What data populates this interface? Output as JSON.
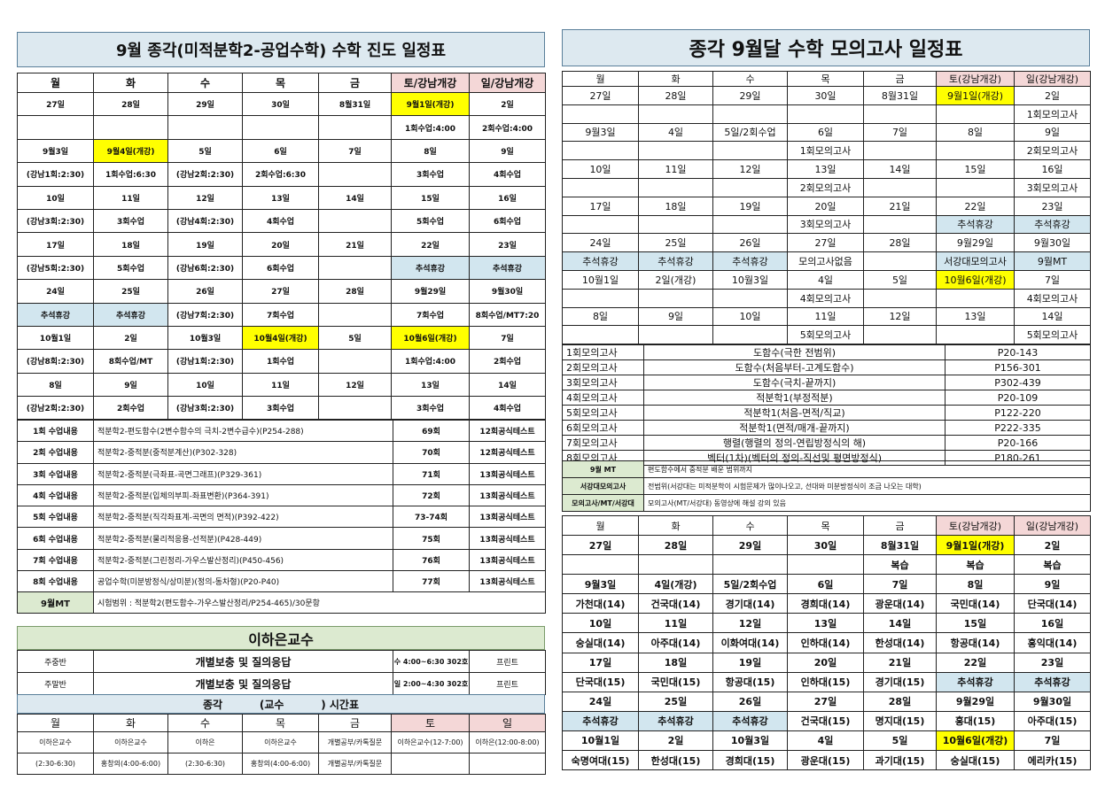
{
  "left": {
    "title": "9월 종각(미적분학2-공업수학) 수학 진도 일정표",
    "headers": [
      "월",
      "화",
      "수",
      "목",
      "금",
      "토/강남개강",
      "일/강남개강"
    ],
    "rows": [
      [
        "27일",
        "28일",
        "29일",
        "30일",
        "8월31일",
        "9월1일(개강)",
        "2일"
      ],
      [
        "",
        "",
        "",
        "",
        "",
        "1회수업:4:00",
        "2회수업:4:00"
      ],
      [
        "9월3일",
        "9월4일(개강)",
        "5일",
        "6일",
        "7일",
        "8일",
        "9일"
      ],
      [
        "(강남1회:2:30)",
        "1회수업:6:30",
        "(강남2회:2:30)",
        "2회수업:6:30",
        "",
        "3회수업",
        "4회수업"
      ],
      [
        "10일",
        "11일",
        "12일",
        "13일",
        "14일",
        "15일",
        "16일"
      ],
      [
        "(강남3회:2:30)",
        "3회수업",
        "(강남4회:2:30)",
        "4회수업",
        "",
        "5회수업",
        "6회수업"
      ],
      [
        "17일",
        "18일",
        "19일",
        "20일",
        "21일",
        "22일",
        "23일"
      ],
      [
        "(강남5회:2:30)",
        "5회수업",
        "(강남6회:2:30)",
        "6회수업",
        "",
        "추석휴강",
        "추석휴강"
      ],
      [
        "24일",
        "25일",
        "26일",
        "27일",
        "28일",
        "9월29일",
        "9월30일"
      ],
      [
        "추석휴강",
        "추석휴강",
        "(강남7회:2:30)",
        "7회수업",
        "",
        "7회수업",
        "8회수업/MT7:20"
      ],
      [
        "10월1일",
        "2일",
        "10월3일",
        "10월4일(개강)",
        "5일",
        "10월6일(개강)",
        "7일"
      ],
      [
        "(강남8회:2:30)",
        "8회수업/MT",
        "(강남1회:2:30)",
        "1회수업",
        "",
        "1회수업:4:00",
        "2회수업"
      ],
      [
        "8일",
        "9일",
        "10일",
        "11일",
        "12일",
        "13일",
        "14일"
      ],
      [
        "(강남2회:2:30)",
        "2회수업",
        "(강남3회:2:30)",
        "3회수업",
        "",
        "3회수업",
        "4회수업"
      ]
    ],
    "contents": [
      [
        "1회 수업내용",
        "적분학2-편도함수(2변수함수의 극치-2변수급수)(P254-288)",
        "69회",
        "12회공식테스트"
      ],
      [
        "2회 수업내용",
        "적분학2-중적분(중적분계산)(P302-328)",
        "70회",
        "12회공식테스트"
      ],
      [
        "3회 수업내용",
        "적분학2-중적분(극좌표-곡면그래프)(P329-361)",
        "71회",
        "13회공식테스트"
      ],
      [
        "4회 수업내용",
        "적분학2-중적분(입체의부피-좌표변환)(P364-391)",
        "72회",
        "13회공식테스트"
      ],
      [
        "5회 수업내용",
        "적분학2-중적분(직각좌표계-곡면의 면적)(P392-422)",
        "73-74회",
        "13회공식테스트"
      ],
      [
        "6회 수업내용",
        "적분학2-중적분(물리적응용-선적분)(P428-449)",
        "75회",
        "13회공식테스트"
      ],
      [
        "7회 수업내용",
        "적분학2-중적분(그린정리-가우스발산정리)(P450-456)",
        "76회",
        "13회공식테스트"
      ],
      [
        "8회 수업내용",
        "공업수학(미분방정식/상미분)(정의-동차형)(P20-P40)",
        "77회",
        "13회공식테스트"
      ]
    ],
    "mt": {
      "label": "9월MT",
      "text": "시험범위 : 적분학2(편도함수-가우스발산정리/P254-465)/30문항"
    },
    "prof": {
      "title": "이하은교수",
      "rows": [
        [
          "주중반",
          "개별보충 및 질의응답",
          "수 4:00~6:30 302호",
          "프린트"
        ],
        [
          "주말반",
          "개별보충 및 질의응답",
          "일 2:00~4:30 302호",
          "프린트"
        ]
      ],
      "timetable_title": "종각          (교수          ) 시간표",
      "days": [
        "월",
        "화",
        "수",
        "목",
        "금",
        "토",
        "일"
      ],
      "tt_rows": [
        [
          "이하은교수",
          "이하은교수",
          "이하은",
          "이하은교수",
          "개별공부/카톡질문",
          "이하은교수(12-7:00)",
          "이하은(12:00-8:00)"
        ],
        [
          "(2:30-6:30)",
          "홍창의(4:00-6:00)",
          "(2:30-6:30)",
          "홍창의(4:00-6:00)",
          "개별공부/카톡질문",
          "",
          ""
        ]
      ]
    }
  },
  "right": {
    "title": "종각 9월달 수학 모의고사 일정표",
    "headers": [
      "월",
      "화",
      "수",
      "목",
      "금",
      "토(강남개강)",
      "일(강남개강)"
    ],
    "rows": [
      [
        "27일",
        "28일",
        "29일",
        "30일",
        "8월31일",
        "9월1일(개강)",
        "2일"
      ],
      [
        "",
        "",
        "",
        "",
        "",
        "",
        "1회모의고사"
      ],
      [
        "9월3일",
        "4일",
        "5일/2회수업",
        "6일",
        "7일",
        "8일",
        "9일"
      ],
      [
        "",
        "",
        "",
        "1회모의고사",
        "",
        "",
        "2회모의고사"
      ],
      [
        "10일",
        "11일",
        "12일",
        "13일",
        "14일",
        "15일",
        "16일"
      ],
      [
        "",
        "",
        "",
        "2회모의고사",
        "",
        "",
        "3회모의고사"
      ],
      [
        "17일",
        "18일",
        "19일",
        "20일",
        "21일",
        "22일",
        "23일"
      ],
      [
        "",
        "",
        "",
        "3회모의고사",
        "",
        "추석휴강",
        "추석휴강"
      ],
      [
        "24일",
        "25일",
        "26일",
        "27일",
        "28일",
        "9월29일",
        "9월30일"
      ],
      [
        "추석휴강",
        "추석휴강",
        "추석휴강",
        "모의고사없음",
        "",
        "서강대모의고사",
        "9월MT"
      ],
      [
        "10월1일",
        "2일(개강)",
        "10월3일",
        "4일",
        "5일",
        "10월6일(개강)",
        "7일"
      ],
      [
        "",
        "",
        "",
        "4회모의고사",
        "",
        "",
        "4회모의고사"
      ],
      [
        "8일",
        "9일",
        "10일",
        "11일",
        "12일",
        "13일",
        "14일"
      ],
      [
        "",
        "",
        "",
        "5회모의고사",
        "",
        "",
        "5회모의고사"
      ]
    ],
    "exams": [
      [
        "1회모의고사",
        "도함수(극한 전범위)",
        "P20-143"
      ],
      [
        "2회모의고사",
        "도함수(처음부터-고계도함수)",
        "P156-301"
      ],
      [
        "3회모의고사",
        "도함수(극치-끝까지)",
        "P302-439"
      ],
      [
        "4회모의고사",
        "적분학1(부정적분)",
        "P20-109"
      ],
      [
        "5회모의고사",
        "적분학1(처음-면적/직교)",
        "P122-220"
      ],
      [
        "6회모의고사",
        "적분학1(면적/매개-끝까지)",
        "P222-335"
      ],
      [
        "7회모의고사",
        "행렬(행렬의 정의-연립방정식의 해)",
        "P20-166"
      ],
      [
        "8회모의고사",
        "벡터(1차)(벡터의 정의-직선및 평면방정식)",
        "P180-261"
      ]
    ],
    "notes": [
      [
        "9월 MT",
        "편도함수에서 중적분 배운 범위까지"
      ],
      [
        "서강대모의고사",
        "전범위(서강대는 미적분학이 시험문제가 많이나오고, 선대와 미분방정식이 조금 나오는 대학)"
      ],
      [
        "모의고사/MT/서강대",
        "모의고사(MT/서강대) 동영상에 해설 강의 있음"
      ]
    ],
    "headers2": [
      "월",
      "화",
      "수",
      "목",
      "금",
      "토(강남개강)",
      "일(강남개강)"
    ],
    "rows2": [
      [
        "27일",
        "28일",
        "29일",
        "30일",
        "8월31일",
        "9월1일(개강)",
        "2일"
      ],
      [
        "",
        "",
        "",
        "",
        "복습",
        "복습",
        "복습"
      ],
      [
        "9월3일",
        "4일(개강)",
        "5일/2회수업",
        "6일",
        "7일",
        "8일",
        "9일"
      ],
      [
        "가천대(14)",
        "건국대(14)",
        "경기대(14)",
        "경희대(14)",
        "광운대(14)",
        "국민대(14)",
        "단국대(14)"
      ],
      [
        "10일",
        "11일",
        "12일",
        "13일",
        "14일",
        "15일",
        "16일"
      ],
      [
        "숭실대(14)",
        "아주대(14)",
        "이화여대(14)",
        "인하대(14)",
        "한성대(14)",
        "항공대(14)",
        "홍익대(14)"
      ],
      [
        "17일",
        "18일",
        "19일",
        "20일",
        "21일",
        "22일",
        "23일"
      ],
      [
        "단국대(15)",
        "국민대(15)",
        "항공대(15)",
        "인하대(15)",
        "경기대(15)",
        "추석휴강",
        "추석휴강"
      ],
      [
        "24일",
        "25일",
        "26일",
        "27일",
        "28일",
        "9월29일",
        "9월30일"
      ],
      [
        "추석휴강",
        "추석휴강",
        "추석휴강",
        "건국대(15)",
        "명지대(15)",
        "홍대(15)",
        "아주대(15)"
      ],
      [
        "10월1일",
        "2일",
        "10월3일",
        "4일",
        "5일",
        "10월6일(개강)",
        "7일"
      ],
      [
        "숙명여대(15)",
        "한성대(15)",
        "경희대(15)",
        "광운대(15)",
        "과기대(15)",
        "숭실대(15)",
        "에리카(15)"
      ]
    ]
  }
}
